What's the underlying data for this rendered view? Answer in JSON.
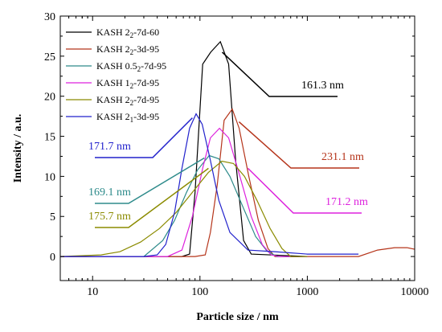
{
  "chart_data": {
    "type": "line",
    "title": "",
    "xlabel": "Particle size / nm",
    "ylabel": "Intensity / a.u.",
    "xscale": "log",
    "xlim": [
      5,
      10000
    ],
    "ylim": [
      -3,
      30
    ],
    "x_ticks": [
      10,
      100,
      1000,
      10000
    ],
    "x_tick_labels": [
      "10",
      "100",
      "1000",
      "10000"
    ],
    "y_ticks": [
      0,
      5,
      10,
      15,
      20,
      25,
      30
    ],
    "y_tick_labels": [
      "0",
      "5",
      "10",
      "15",
      "20",
      "25",
      "30"
    ],
    "grid": false,
    "legend_position": "top-left",
    "series": [
      {
        "name": "KASH 2₂-7d-60",
        "color": "#000000",
        "points": [
          [
            5,
            0
          ],
          [
            68,
            0
          ],
          [
            80,
            0.3
          ],
          [
            90,
            8
          ],
          [
            106,
            24
          ],
          [
            126,
            25.5
          ],
          [
            155,
            26.8
          ],
          [
            185,
            24
          ],
          [
            215,
            12
          ],
          [
            255,
            2
          ],
          [
            300,
            0.3
          ],
          [
            1000,
            0
          ]
        ]
      },
      {
        "name": "KASH 2₂-3d-95",
        "color": "#b5341a",
        "points": [
          [
            5,
            0
          ],
          [
            90,
            0
          ],
          [
            112,
            0.2
          ],
          [
            125,
            3
          ],
          [
            145,
            9
          ],
          [
            168,
            17
          ],
          [
            200,
            18.4
          ],
          [
            232,
            16
          ],
          [
            285,
            10
          ],
          [
            350,
            4.5
          ],
          [
            430,
            1
          ],
          [
            500,
            0
          ],
          [
            3000,
            0
          ],
          [
            4500,
            0.8
          ],
          [
            6500,
            1.1
          ],
          [
            8500,
            1.1
          ],
          [
            10000,
            0.9
          ]
        ]
      },
      {
        "name": "KASH 0.5₂-7d-95",
        "color": "#2e8b8b",
        "points": [
          [
            5,
            0
          ],
          [
            30,
            0
          ],
          [
            45,
            2
          ],
          [
            58,
            4.5
          ],
          [
            75,
            8
          ],
          [
            95,
            10.8
          ],
          [
            122,
            12.6
          ],
          [
            150,
            12.2
          ],
          [
            190,
            10
          ],
          [
            255,
            6
          ],
          [
            330,
            2.5
          ],
          [
            420,
            0.7
          ],
          [
            520,
            0
          ],
          [
            1000,
            0
          ]
        ]
      },
      {
        "name": "KASH 1₂-7d-95",
        "color": "#dd22dd",
        "points": [
          [
            5,
            0
          ],
          [
            50,
            0
          ],
          [
            68,
            0.8
          ],
          [
            85,
            5
          ],
          [
            106,
            11
          ],
          [
            125,
            14.8
          ],
          [
            152,
            16
          ],
          [
            185,
            14.8
          ],
          [
            230,
            10.5
          ],
          [
            300,
            5
          ],
          [
            380,
            1.5
          ],
          [
            460,
            0.2
          ],
          [
            550,
            0
          ],
          [
            1000,
            0
          ]
        ]
      },
      {
        "name": "KASH 2₂-7d-95",
        "color": "#8b8b00",
        "points": [
          [
            5,
            0
          ],
          [
            12,
            0.2
          ],
          [
            18,
            0.6
          ],
          [
            28,
            1.8
          ],
          [
            42,
            3.5
          ],
          [
            60,
            5.5
          ],
          [
            85,
            8
          ],
          [
            120,
            10.5
          ],
          [
            160,
            11.9
          ],
          [
            205,
            11.6
          ],
          [
            260,
            10
          ],
          [
            340,
            7
          ],
          [
            450,
            3.5
          ],
          [
            580,
            1
          ],
          [
            700,
            0
          ],
          [
            1000,
            0
          ]
        ]
      },
      {
        "name": "KASH 2₁-3d-95",
        "color": "#2222cc",
        "points": [
          [
            5,
            0
          ],
          [
            30,
            0
          ],
          [
            40,
            0.2
          ],
          [
            48,
            1.5
          ],
          [
            58,
            5.5
          ],
          [
            68,
            11
          ],
          [
            80,
            16
          ],
          [
            92,
            17.8
          ],
          [
            105,
            16.5
          ],
          [
            125,
            12
          ],
          [
            150,
            7
          ],
          [
            190,
            3
          ],
          [
            280,
            0.8
          ],
          [
            500,
            0.6
          ],
          [
            1000,
            0.3
          ],
          [
            2000,
            0.3
          ],
          [
            3000,
            0.3
          ]
        ]
      }
    ],
    "annotations": [
      {
        "text": "161.3 nm",
        "color": "#000000",
        "anchor_x": 161.3,
        "anchor_y": 25.5
      },
      {
        "text": "231.1 nm",
        "color": "#b5341a",
        "anchor_x": 231.1,
        "anchor_y": 16.8
      },
      {
        "text": "171.2 nm",
        "color": "#dd22dd",
        "anchor_x": 280,
        "anchor_y": 11
      },
      {
        "text": "171.7 nm",
        "color": "#2222cc",
        "anchor_x": 85,
        "anchor_y": 17.3
      },
      {
        "text": "169.1 nm",
        "color": "#2e8b8b",
        "anchor_x": 110,
        "anchor_y": 12.3
      },
      {
        "text": "175.7 nm",
        "color": "#8b8b00",
        "anchor_x": 120,
        "anchor_y": 11
      }
    ]
  }
}
